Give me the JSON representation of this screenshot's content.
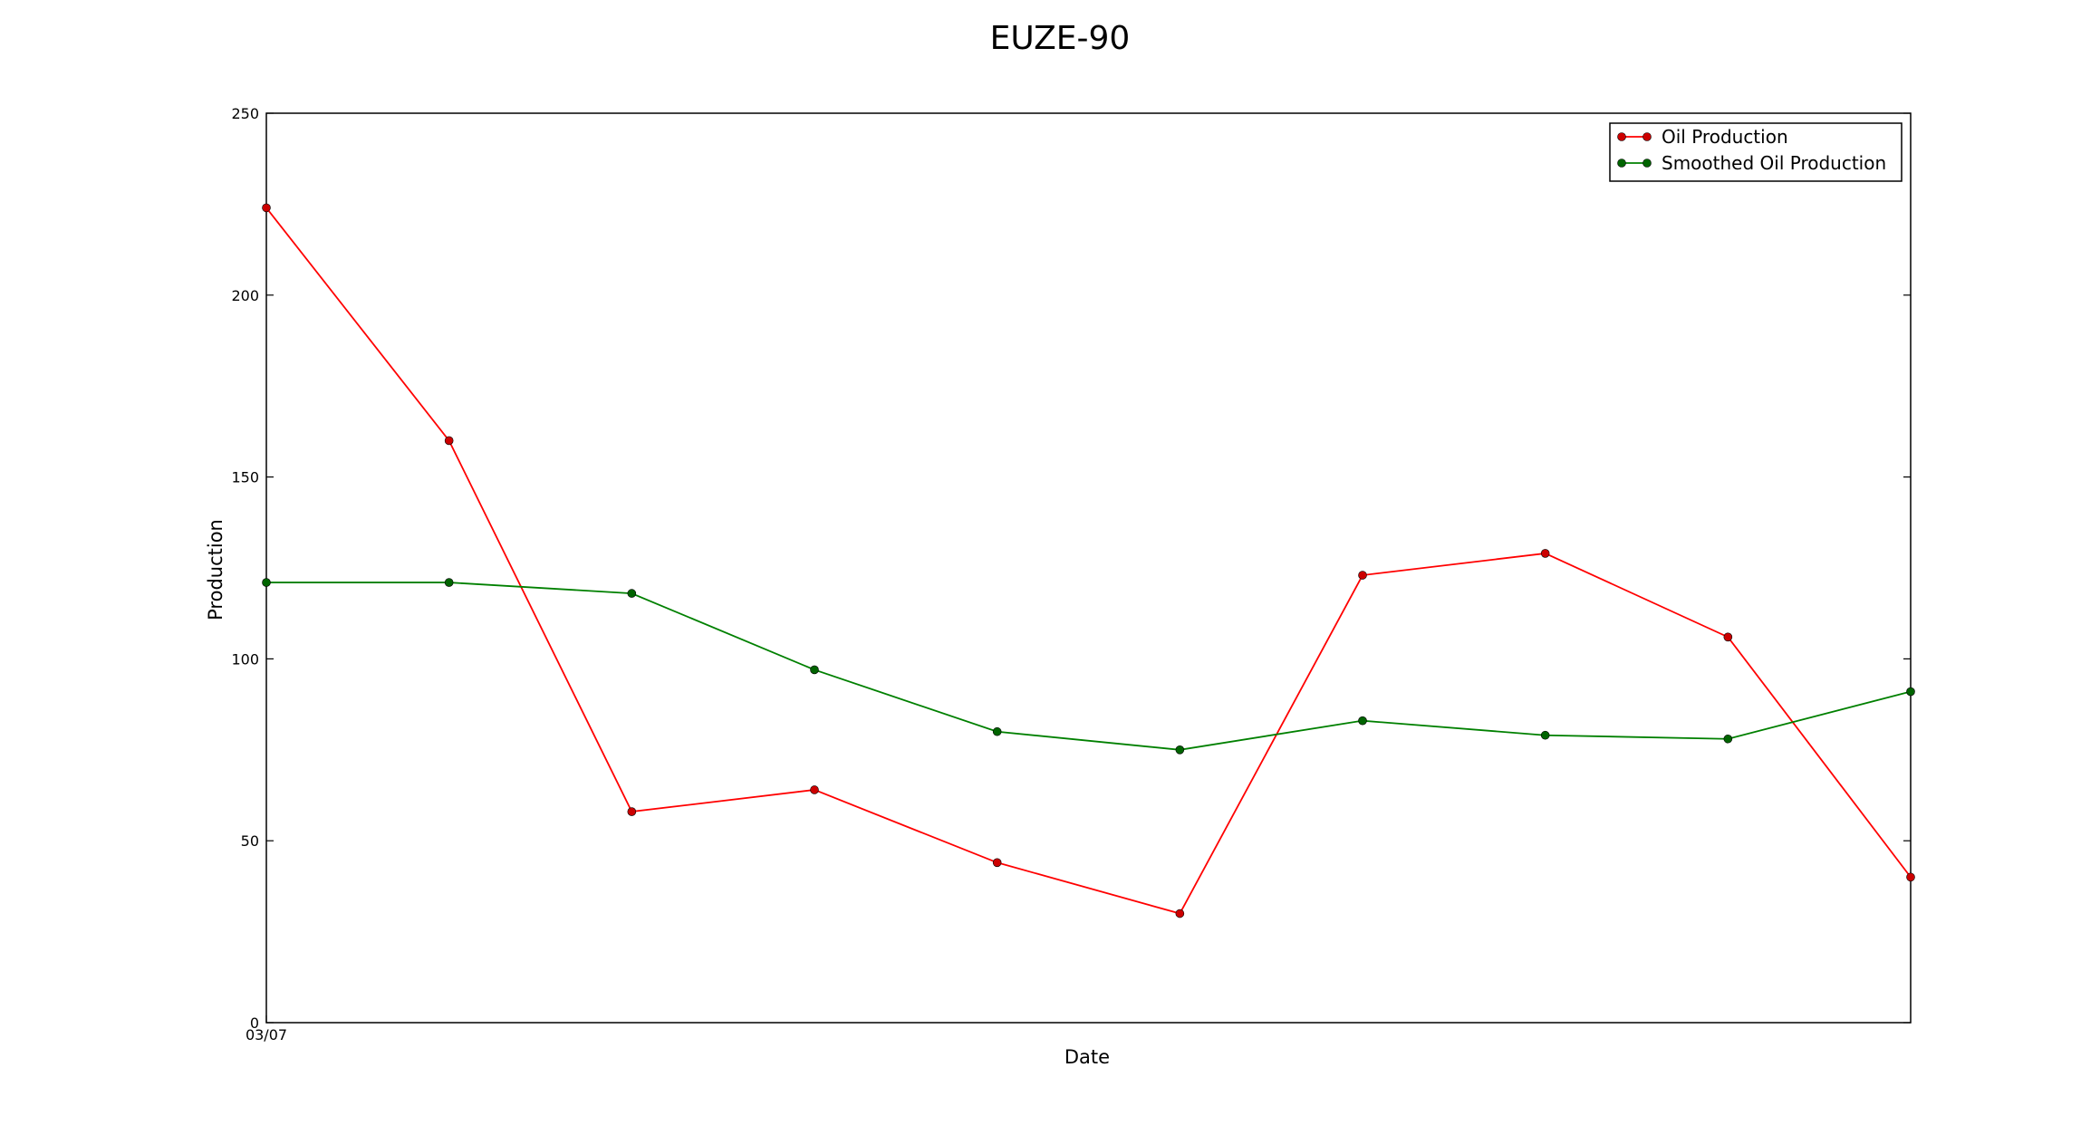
{
  "chart_data": {
    "type": "line",
    "title": "EUZE-90",
    "xlabel": "Date",
    "ylabel": "Production",
    "ylim": [
      0,
      250
    ],
    "yticks": [
      "0",
      "50",
      "100",
      "150",
      "200",
      "250"
    ],
    "xticks": [
      {
        "index": 0,
        "label": "03/07"
      }
    ],
    "x": [
      0,
      1,
      2,
      3,
      4,
      5,
      6,
      7,
      8,
      9
    ],
    "grid": false,
    "legend_position": "top-right",
    "series": [
      {
        "name": "Oil Production",
        "color": "#ff0000",
        "marker_color": "#cc0000",
        "values": [
          224,
          160,
          58,
          64,
          44,
          30,
          123,
          129,
          106,
          40
        ]
      },
      {
        "name": "Smoothed Oil Production",
        "color": "#008000",
        "marker_color": "#006400",
        "values": [
          121,
          121,
          118,
          97,
          80,
          75,
          83,
          79,
          78,
          91
        ]
      }
    ]
  }
}
